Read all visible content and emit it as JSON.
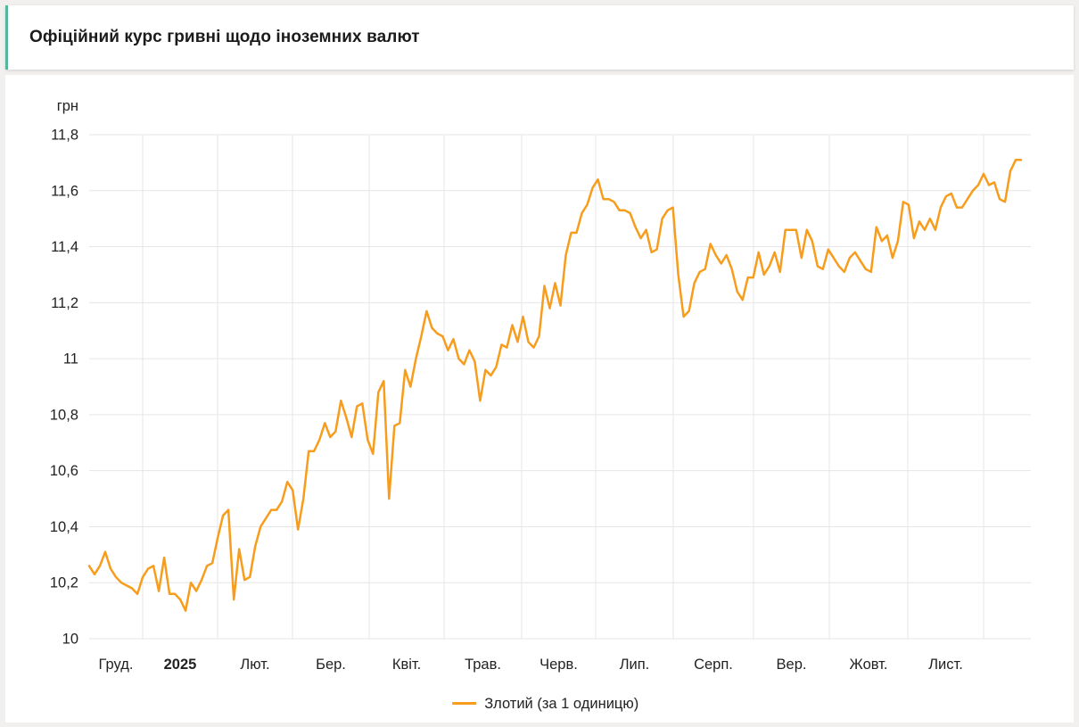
{
  "page": {
    "background": "#f1f0ee"
  },
  "header": {
    "title": "Офіційний курс гривні щодо іноземних валют",
    "accent_color": "#55b79a"
  },
  "colors": {
    "line": "#f89c1c",
    "grid": "#e6e6e6",
    "text": "#222222"
  },
  "legend": {
    "label": "Злотий (за 1 одиницю)"
  },
  "chart_data": {
    "type": "line",
    "title": "Офіційний курс гривні щодо іноземних валют",
    "ylabel": "грн",
    "xlabel": "",
    "ylim": [
      10,
      11.8
    ],
    "grid": true,
    "legend_position": "bottom-center",
    "y_ticks": [
      {
        "value": 10.0,
        "label": "10"
      },
      {
        "value": 10.2,
        "label": "10,2"
      },
      {
        "value": 10.4,
        "label": "10,4"
      },
      {
        "value": 10.6,
        "label": "10,6"
      },
      {
        "value": 10.8,
        "label": "10,8"
      },
      {
        "value": 11.0,
        "label": "11"
      },
      {
        "value": 11.2,
        "label": "11,2"
      },
      {
        "value": 11.4,
        "label": "11,4"
      },
      {
        "value": 11.6,
        "label": "11,6"
      },
      {
        "value": 11.8,
        "label": "11,8"
      }
    ],
    "x_tick_labels": [
      "Груд.",
      "2025",
      "Лют.",
      "Бер.",
      "Квіт.",
      "Трав.",
      "Черв.",
      "Лип.",
      "Серп.",
      "Вер.",
      "Жовт.",
      "Лист."
    ],
    "x_bold_label_index": 1,
    "month_boundaries_frac": [
      0.0574,
      0.1378,
      0.2182,
      0.3005,
      0.3809,
      0.4641,
      0.5435,
      0.6268,
      0.7129,
      0.7943,
      0.8785,
      0.9598
    ],
    "series": [
      {
        "name": "Злотий (за 1 одиницю)",
        "color": "#f89c1c",
        "values": [
          10.26,
          10.23,
          10.26,
          10.31,
          10.25,
          10.22,
          10.2,
          10.19,
          10.18,
          10.16,
          10.22,
          10.25,
          10.26,
          10.17,
          10.29,
          10.16,
          10.16,
          10.14,
          10.1,
          10.2,
          10.17,
          10.21,
          10.26,
          10.27,
          10.36,
          10.44,
          10.46,
          10.14,
          10.32,
          10.21,
          10.22,
          10.33,
          10.4,
          10.43,
          10.46,
          10.46,
          10.49,
          10.56,
          10.53,
          10.39,
          10.5,
          10.67,
          10.67,
          10.71,
          10.77,
          10.72,
          10.74,
          10.85,
          10.79,
          10.72,
          10.83,
          10.84,
          10.71,
          10.66,
          10.88,
          10.92,
          10.5,
          10.76,
          10.77,
          10.96,
          10.9,
          11.0,
          11.08,
          11.17,
          11.11,
          11.09,
          11.08,
          11.03,
          11.07,
          11.0,
          10.98,
          11.03,
          10.99,
          10.85,
          10.96,
          10.94,
          10.97,
          11.05,
          11.04,
          11.12,
          11.06,
          11.15,
          11.06,
          11.04,
          11.08,
          11.26,
          11.18,
          11.27,
          11.19,
          11.37,
          11.45,
          11.45,
          11.52,
          11.55,
          11.61,
          11.64,
          11.57,
          11.57,
          11.56,
          11.53,
          11.53,
          11.52,
          11.47,
          11.43,
          11.46,
          11.38,
          11.39,
          11.5,
          11.53,
          11.54,
          11.3,
          11.15,
          11.17,
          11.27,
          11.31,
          11.32,
          11.41,
          11.37,
          11.34,
          11.37,
          11.32,
          11.24,
          11.21,
          11.29,
          11.29,
          11.38,
          11.3,
          11.33,
          11.38,
          11.31,
          11.46,
          11.46,
          11.46,
          11.36,
          11.46,
          11.42,
          11.33,
          11.32,
          11.39,
          11.36,
          11.33,
          11.31,
          11.36,
          11.38,
          11.35,
          11.32,
          11.31,
          11.47,
          11.42,
          11.44,
          11.36,
          11.42,
          11.56,
          11.55,
          11.43,
          11.49,
          11.46,
          11.5,
          11.46,
          11.54,
          11.58,
          11.59,
          11.54,
          11.54,
          11.57,
          11.6,
          11.62,
          11.66,
          11.62,
          11.63,
          11.57,
          11.56,
          11.67,
          11.71,
          11.71
        ]
      }
    ]
  }
}
